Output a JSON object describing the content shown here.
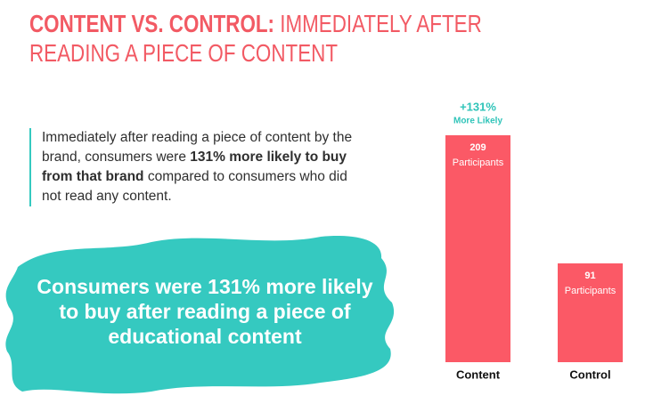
{
  "header": {
    "title_bold": "CONTENT VS. CONTROL:",
    "title_rest": "IMMEDIATELY AFTER READING A PIECE OF CONTENT"
  },
  "paragraph": {
    "before": "Immediately after reading a piece of content by the brand, consumers were",
    "bold": "131% more likely to buy from that brand",
    "after": "compared to consumers who did not read any content."
  },
  "callout": "Consumers were 131% more likely to buy after reading a piece of educational content",
  "chart_data": {
    "type": "bar",
    "categories": [
      "Content",
      "Control"
    ],
    "values": [
      209,
      91
    ],
    "value_caption": "Participants",
    "color": "#fb5966",
    "annotation": {
      "value": "+131%",
      "note": "More Likely",
      "color": "#2fc4b9"
    }
  }
}
